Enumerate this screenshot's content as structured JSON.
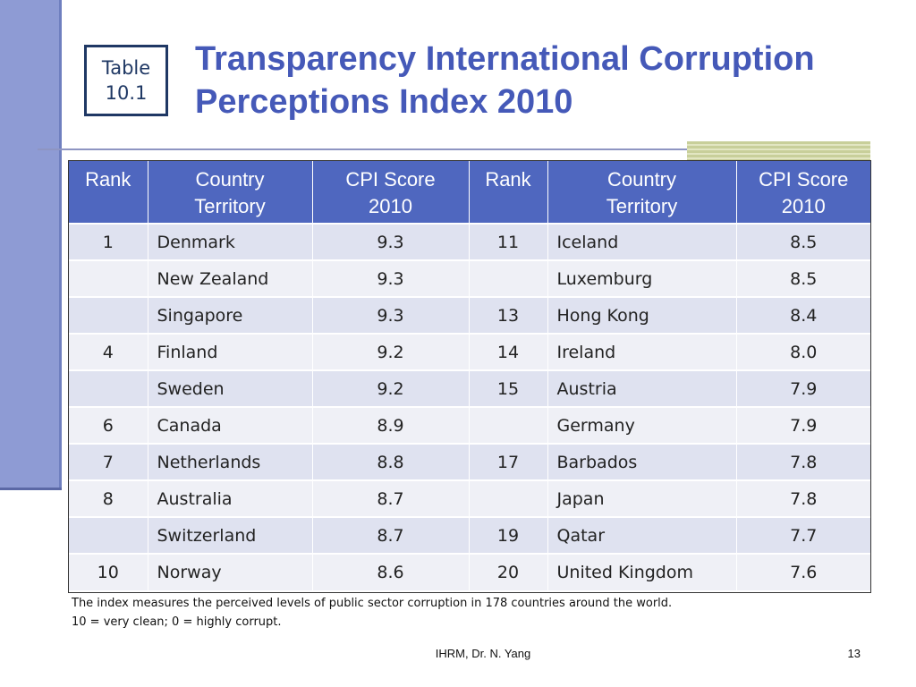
{
  "slide": {
    "tag_line1": "Table",
    "tag_line2": "10.1",
    "title_line1": "Transparency International Corruption",
    "title_line2": "Perceptions Index 2010"
  },
  "table": {
    "headers": {
      "rank": "Rank",
      "country_line1": "Country",
      "country_line2": "Territory",
      "score_line1": "CPI Score",
      "score_line2": "2010"
    },
    "rows": [
      {
        "rank_a": "1",
        "country_a": "Denmark",
        "score_a": "9.3",
        "rank_b": "11",
        "country_b": "Iceland",
        "score_b": "8.5"
      },
      {
        "rank_a": "",
        "country_a": "New Zealand",
        "score_a": "9.3",
        "rank_b": "",
        "country_b": "Luxemburg",
        "score_b": "8.5"
      },
      {
        "rank_a": "",
        "country_a": "Singapore",
        "score_a": "9.3",
        "rank_b": "13",
        "country_b": "Hong Kong",
        "score_b": "8.4"
      },
      {
        "rank_a": "4",
        "country_a": "Finland",
        "score_a": "9.2",
        "rank_b": "14",
        "country_b": "Ireland",
        "score_b": "8.0"
      },
      {
        "rank_a": "",
        "country_a": "Sweden",
        "score_a": "9.2",
        "rank_b": "15",
        "country_b": "Austria",
        "score_b": "7.9"
      },
      {
        "rank_a": "6",
        "country_a": "Canada",
        "score_a": "8.9",
        "rank_b": "",
        "country_b": "Germany",
        "score_b": "7.9"
      },
      {
        "rank_a": "7",
        "country_a": "Netherlands",
        "score_a": "8.8",
        "rank_b": "17",
        "country_b": "Barbados",
        "score_b": "7.8"
      },
      {
        "rank_a": "8",
        "country_a": "Australia",
        "score_a": "8.7",
        "rank_b": "",
        "country_b": "Japan",
        "score_b": "7.8"
      },
      {
        "rank_a": "",
        "country_a": "Switzerland",
        "score_a": "8.7",
        "rank_b": "19",
        "country_b": "Qatar",
        "score_b": "7.7"
      },
      {
        "rank_a": "10",
        "country_a": "Norway",
        "score_a": "8.6",
        "rank_b": "20",
        "country_b": "United Kingdom",
        "score_b": "7.6"
      }
    ]
  },
  "notes": {
    "line1": "The index measures the perceived levels of public sector corruption in 178 countries around the world.",
    "line2": "10 = very clean; 0 = highly corrupt."
  },
  "footer": {
    "credit": "IHRM, Dr. N. Yang",
    "page_number": "13"
  },
  "colors": {
    "title": "#4559b8",
    "header_fill": "#4f67bf",
    "row_odd": "#dfe2f0",
    "row_even": "#eff0f6",
    "side_bar": "#8e9bd4"
  }
}
